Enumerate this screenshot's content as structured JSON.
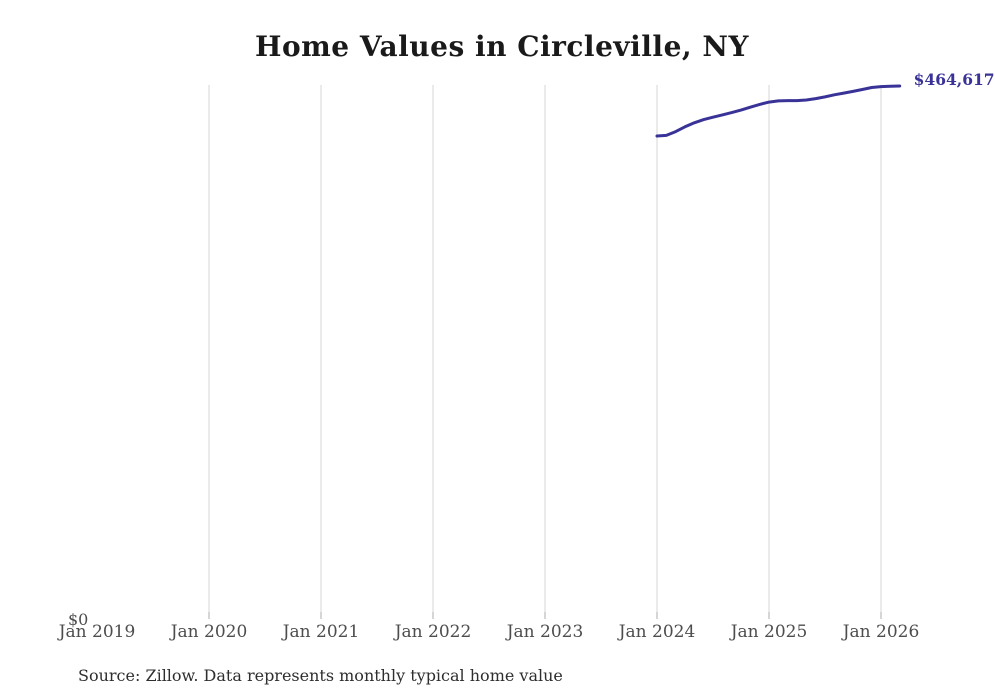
{
  "title": "Home Values in Circleville, NY",
  "source_note": "Source: Zillow. Data represents monthly typical home value",
  "y_axis": {
    "zero_label": "$0"
  },
  "colors": {
    "line": "#3a3397",
    "end_label": "#3a3397",
    "grid": "#d6d6d6",
    "tick": "#aeaeae",
    "axis_label": "#4d4d4d",
    "title": "#1a1a1a",
    "source": "#2e2e2e"
  },
  "chart_data": {
    "type": "line",
    "title": "Home Values in Circleville, NY",
    "xlabel": "",
    "ylabel": "",
    "ylim": [
      0,
      465500
    ],
    "grid": "vertical-only",
    "legend": "none",
    "x_axis_ticks": [
      "Jan 2019",
      "Jan 2020",
      "Jan 2021",
      "Jan 2022",
      "Jan 2023",
      "Jan 2024",
      "Jan 2025",
      "Jan 2026"
    ],
    "x_axis_ticks_with_gridline": [
      "Jan 2020",
      "Jan 2021",
      "Jan 2022",
      "Jan 2023",
      "Jan 2024",
      "Jan 2025",
      "Jan 2026"
    ],
    "series_name": "Typical home value",
    "end_label": "$464,617",
    "x": [
      "Jan 2024",
      "Feb 2024",
      "Mar 2024",
      "Apr 2024",
      "May 2024",
      "Jun 2024",
      "Jul 2024",
      "Aug 2024",
      "Sep 2024",
      "Oct 2024",
      "Nov 2024",
      "Dec 2024",
      "Jan 2025",
      "Feb 2025",
      "Mar 2025",
      "Apr 2025",
      "May 2025",
      "Jun 2025",
      "Jul 2025",
      "Aug 2025",
      "Sep 2025",
      "Oct 2025",
      "Nov 2025",
      "Dec 2025",
      "Jan 2026",
      "Feb 2026",
      "Mar 2026"
    ],
    "values": [
      421000,
      421500,
      424800,
      429000,
      432500,
      435300,
      437400,
      439400,
      441400,
      443600,
      446100,
      448600,
      450600,
      451600,
      451900,
      451900,
      452400,
      453600,
      455100,
      456900,
      458400,
      459900,
      461600,
      463300,
      464100,
      464400,
      464617
    ]
  }
}
